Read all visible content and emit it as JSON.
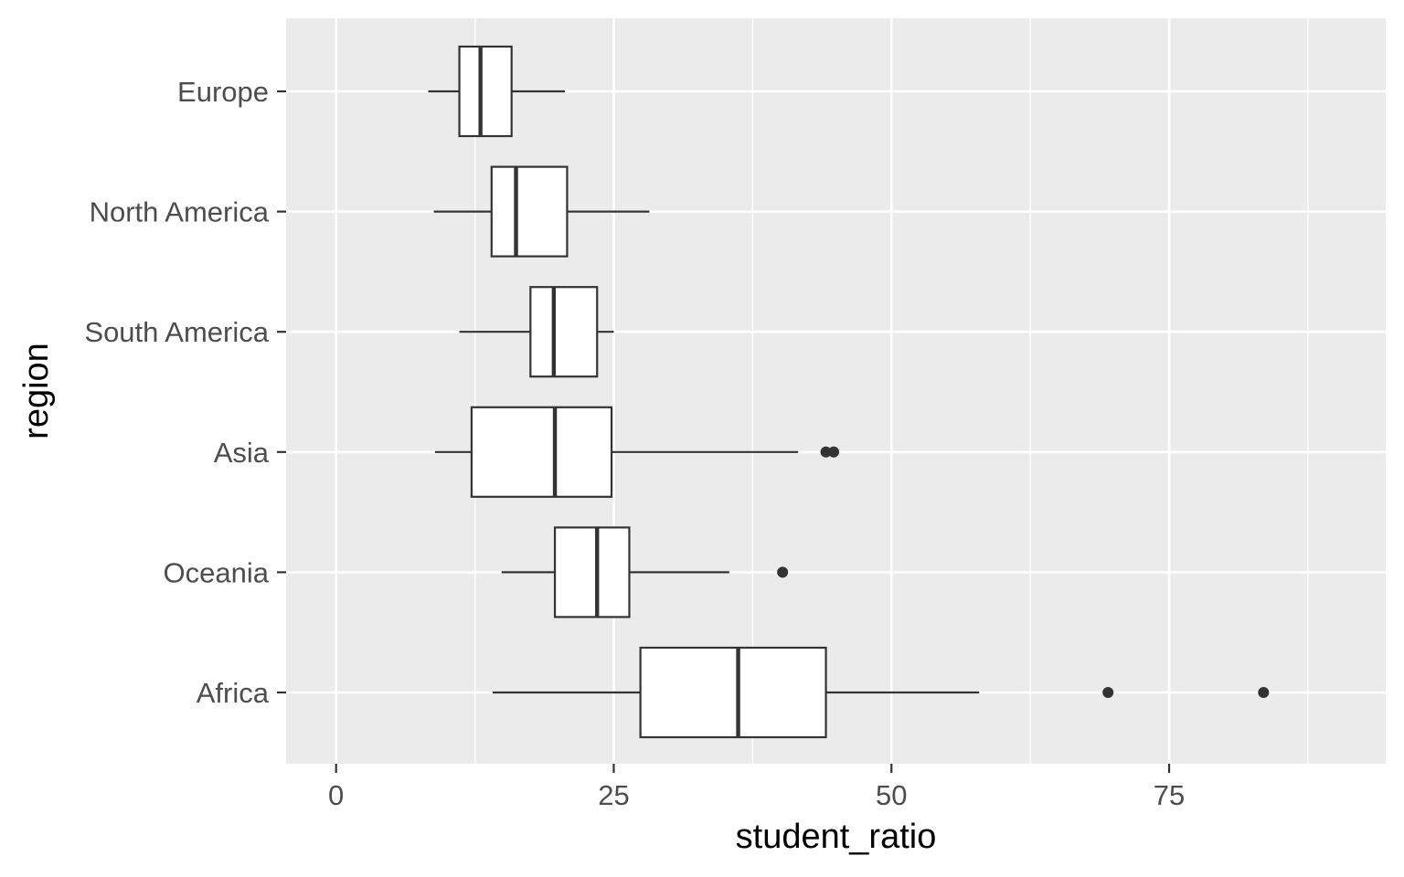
{
  "chart_data": {
    "type": "boxplot",
    "orientation": "horizontal",
    "title": "",
    "xlabel": "student_ratio",
    "ylabel": "region",
    "xlim": [
      -4.5,
      94.5
    ],
    "x_ticks": [
      0,
      25,
      50,
      75
    ],
    "x_tick_labels": [
      "0",
      "25",
      "50",
      "75"
    ],
    "grid": true,
    "legend": "none",
    "colors": {
      "panel_background": "#ebebeb",
      "grid_line": "#ffffff",
      "box_fill": "#ffffff",
      "box_stroke": "#333333",
      "axis_text": "#4d4d4d",
      "axis_title": "#000000"
    },
    "categories": [
      "Europe",
      "North America",
      "South America",
      "Asia",
      "Oceania",
      "Africa"
    ],
    "boxes": [
      {
        "category": "Europe",
        "whisker_low": 8.3,
        "q1": 11.1,
        "median": 13.0,
        "q3": 15.8,
        "whisker_high": 20.6,
        "outliers": []
      },
      {
        "category": "North America",
        "whisker_low": 8.8,
        "q1": 14.0,
        "median": 16.2,
        "q3": 20.8,
        "whisker_high": 28.2,
        "outliers": []
      },
      {
        "category": "South America",
        "whisker_low": 11.1,
        "q1": 17.5,
        "median": 19.6,
        "q3": 23.5,
        "whisker_high": 25.0,
        "outliers": []
      },
      {
        "category": "Asia",
        "whisker_low": 8.9,
        "q1": 12.2,
        "median": 19.7,
        "q3": 24.8,
        "whisker_high": 41.6,
        "outliers": [
          44.1,
          44.8
        ]
      },
      {
        "category": "Oceania",
        "whisker_low": 14.9,
        "q1": 19.7,
        "median": 23.5,
        "q3": 26.4,
        "whisker_high": 35.4,
        "outliers": [
          40.2
        ]
      },
      {
        "category": "Africa",
        "whisker_low": 14.1,
        "q1": 27.4,
        "median": 36.2,
        "q3": 44.1,
        "whisker_high": 57.9,
        "outliers": [
          69.5,
          83.5
        ]
      }
    ]
  }
}
